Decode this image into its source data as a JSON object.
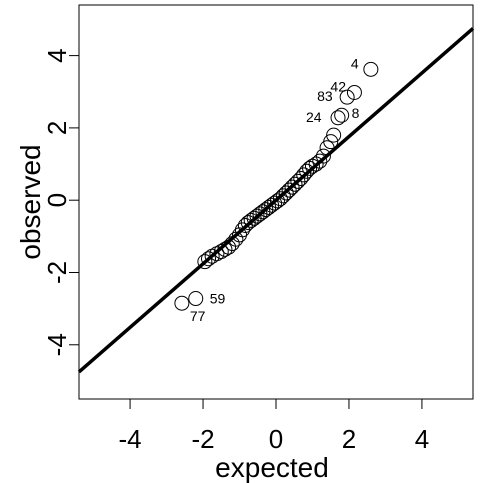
{
  "chart_data": {
    "type": "scatter",
    "xlabel": "expected",
    "ylabel": "observed",
    "xlim": [
      -5.4,
      5.4
    ],
    "ylim": [
      -5.5,
      5.4
    ],
    "xticks": [
      -4,
      -2,
      0,
      2,
      4
    ],
    "yticks": [
      -4,
      -2,
      0,
      2,
      4
    ],
    "xtick_labels": [
      "-4",
      "-2",
      "0",
      "2",
      "4"
    ],
    "ytick_labels": [
      "-4",
      "-2",
      "0",
      "2",
      "4"
    ],
    "reference_line": {
      "slope": 0.88,
      "intercept": 0
    },
    "points": [
      {
        "x": -2.58,
        "y": -2.85,
        "label": "77"
      },
      {
        "x": -2.2,
        "y": -2.72,
        "label": "59"
      },
      {
        "x": -1.95,
        "y": -1.7
      },
      {
        "x": -1.85,
        "y": -1.62
      },
      {
        "x": -1.75,
        "y": -1.55
      },
      {
        "x": -1.62,
        "y": -1.48
      },
      {
        "x": -1.5,
        "y": -1.42
      },
      {
        "x": -1.4,
        "y": -1.36
      },
      {
        "x": -1.3,
        "y": -1.3
      },
      {
        "x": -1.2,
        "y": -1.2
      },
      {
        "x": -1.1,
        "y": -1.08
      },
      {
        "x": -1.0,
        "y": -0.96
      },
      {
        "x": -0.92,
        "y": -0.82
      },
      {
        "x": -0.84,
        "y": -0.7
      },
      {
        "x": -0.76,
        "y": -0.62
      },
      {
        "x": -0.68,
        "y": -0.56
      },
      {
        "x": -0.6,
        "y": -0.5
      },
      {
        "x": -0.52,
        "y": -0.44
      },
      {
        "x": -0.44,
        "y": -0.38
      },
      {
        "x": -0.36,
        "y": -0.32
      },
      {
        "x": -0.28,
        "y": -0.26
      },
      {
        "x": -0.2,
        "y": -0.2
      },
      {
        "x": -0.12,
        "y": -0.14
      },
      {
        "x": -0.04,
        "y": -0.08
      },
      {
        "x": 0.04,
        "y": -0.02
      },
      {
        "x": 0.12,
        "y": 0.04
      },
      {
        "x": 0.2,
        "y": 0.12
      },
      {
        "x": 0.28,
        "y": 0.2
      },
      {
        "x": 0.36,
        "y": 0.28
      },
      {
        "x": 0.44,
        "y": 0.36
      },
      {
        "x": 0.52,
        "y": 0.44
      },
      {
        "x": 0.6,
        "y": 0.52
      },
      {
        "x": 0.68,
        "y": 0.6
      },
      {
        "x": 0.76,
        "y": 0.7
      },
      {
        "x": 0.84,
        "y": 0.8
      },
      {
        "x": 0.92,
        "y": 0.88
      },
      {
        "x": 1.0,
        "y": 0.94
      },
      {
        "x": 1.1,
        "y": 1.0
      },
      {
        "x": 1.2,
        "y": 1.08
      },
      {
        "x": 1.3,
        "y": 1.22
      },
      {
        "x": 1.4,
        "y": 1.45
      },
      {
        "x": 1.5,
        "y": 1.62
      },
      {
        "x": 1.58,
        "y": 1.8
      },
      {
        "x": 1.7,
        "y": 2.28,
        "label": "24"
      },
      {
        "x": 1.8,
        "y": 2.35,
        "label": "8"
      },
      {
        "x": 1.95,
        "y": 2.85,
        "label": "83"
      },
      {
        "x": 2.15,
        "y": 2.98,
        "label": "42"
      },
      {
        "x": 2.6,
        "y": 3.62,
        "label": "4"
      }
    ]
  }
}
